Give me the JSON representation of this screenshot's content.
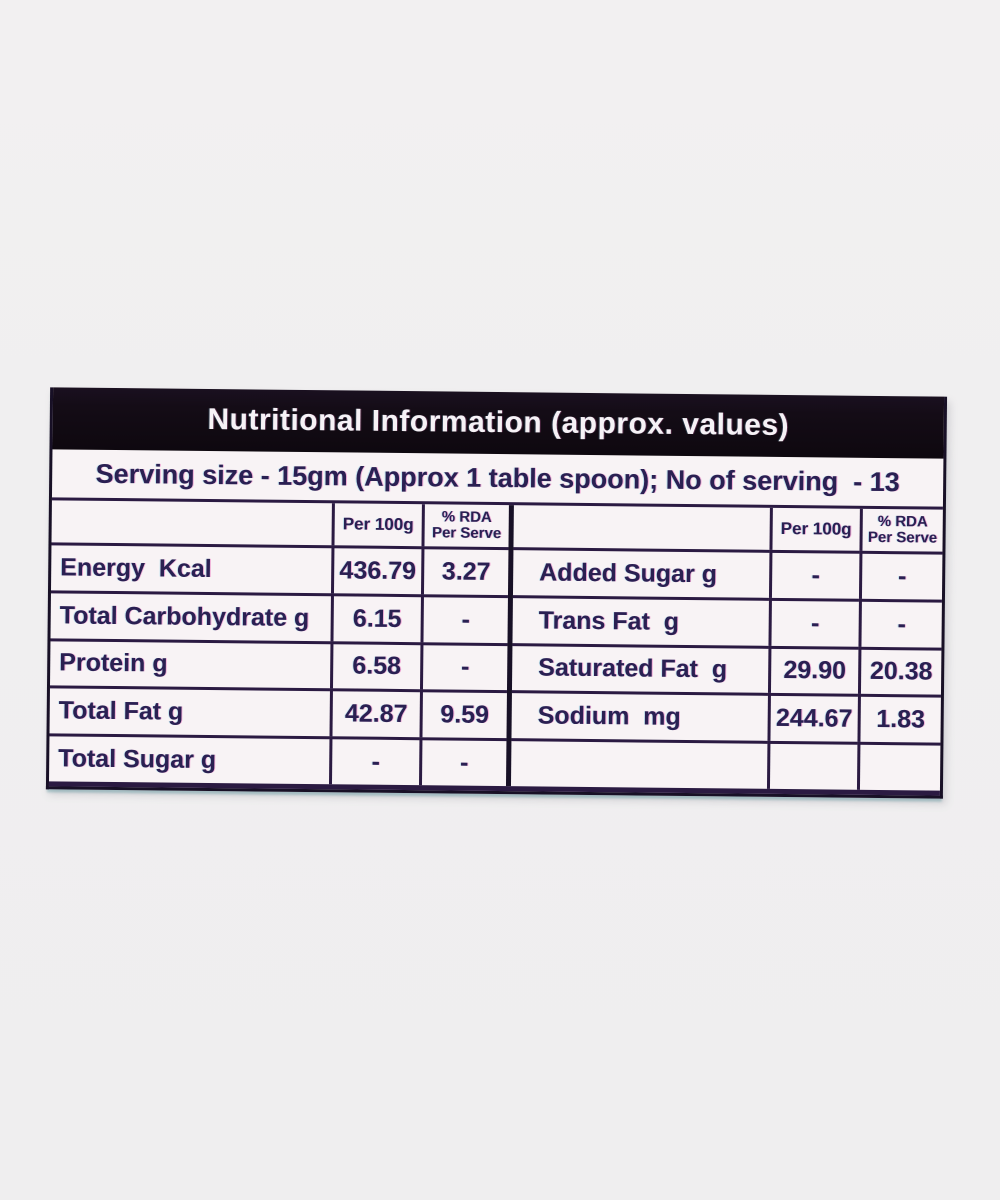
{
  "label": {
    "title": "Nutritional Information (approx. values)",
    "serving_line": "Serving size - 15gm (Approx 1 table spoon); No of serving  - 13",
    "col_headers": {
      "per_100g": "Per 100g",
      "rda_line1": "% RDA",
      "rda_line2": "Per Serve"
    },
    "left_table": {
      "rows": [
        {
          "name": "Energy  Kcal",
          "per_100g": "436.79",
          "rda_per_serve": "3.27"
        },
        {
          "name": "Total Carbohydrate g",
          "per_100g": "6.15",
          "rda_per_serve": "-"
        },
        {
          "name": "Protein g",
          "per_100g": "6.58",
          "rda_per_serve": "-"
        },
        {
          "name": "Total Fat g",
          "per_100g": "42.87",
          "rda_per_serve": "9.59"
        },
        {
          "name": "Total Sugar g",
          "per_100g": "-",
          "rda_per_serve": "-"
        }
      ]
    },
    "right_table": {
      "rows": [
        {
          "name": "Added Sugar g",
          "per_100g": "-",
          "rda_per_serve": "-"
        },
        {
          "name": "Trans Fat  g",
          "per_100g": "-",
          "rda_per_serve": "-"
        },
        {
          "name": "Saturated Fat  g",
          "per_100g": "29.90",
          "rda_per_serve": "20.38"
        },
        {
          "name": "Sodium  mg",
          "per_100g": "244.67",
          "rda_per_serve": "1.83"
        },
        {
          "name": "",
          "per_100g": "",
          "rda_per_serve": ""
        }
      ]
    },
    "colors": {
      "title_bar_bg": "#140c16",
      "title_text": "#f6f2f6",
      "ink": "#2a2052",
      "grid_line": "#2b1a42",
      "label_bg": "#f8f3f5",
      "page_bg": "#f0eff0"
    }
  }
}
